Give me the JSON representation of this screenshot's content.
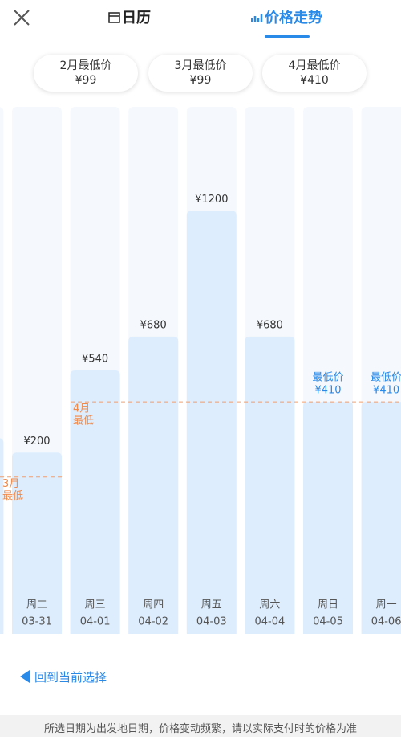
{
  "header": {
    "tabs": [
      "日历",
      "价格走势"
    ]
  },
  "month_lows": [
    {
      "label": "2月最低价",
      "price": "¥99"
    },
    {
      "label": "3月最低价",
      "price": "¥99"
    },
    {
      "label": "4月最低价",
      "price": "¥410"
    }
  ],
  "chart_data": {
    "type": "bar",
    "categories": [
      null,
      "03-31",
      "04-01",
      "04-02",
      "04-03",
      "04-04",
      "04-05",
      "04-06"
    ],
    "weekdays": [
      null,
      "周二",
      "周三",
      "周四",
      "周五",
      "周六",
      "周日",
      "周一"
    ],
    "values": [
      260,
      200,
      540,
      680,
      1200,
      680,
      410,
      410
    ],
    "value_labels": [
      null,
      "¥200",
      "¥540",
      "¥680",
      "¥1200",
      "¥680",
      "¥410",
      "¥410"
    ],
    "min_label": "最低价",
    "color": "#ddedfd",
    "ylim": [
      -550,
      1630
    ],
    "reference_lines": [
      {
        "value": 99,
        "label_lines": [
          "3月",
          "最低"
        ]
      },
      {
        "value": 410,
        "label_lines": [
          "4月",
          "最低"
        ]
      }
    ]
  },
  "back_link": "回到当前选择",
  "footer": "所选日期为出发地日期，价格变动频繁，请以实际支付时的价格为准"
}
